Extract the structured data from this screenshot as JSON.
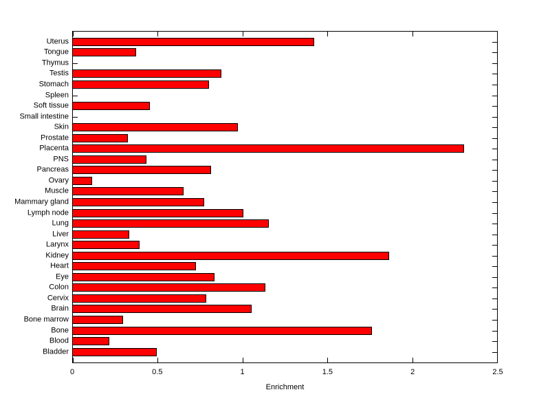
{
  "chart_data": {
    "type": "bar",
    "orientation": "horizontal",
    "title": "",
    "xlabel": "Enrichment",
    "ylabel": "",
    "xlim": [
      0,
      2.5
    ],
    "xticks": [
      0,
      0.5,
      1,
      1.5,
      2,
      2.5
    ],
    "xtick_labels": [
      "0",
      "0.5",
      "1",
      "1.5",
      "2",
      "2.5"
    ],
    "grid": false,
    "legend": "none",
    "bar_color": "#ff0000",
    "bar_edge_color": "#000000",
    "axis_color": "#000000",
    "background_color": "#ffffff",
    "categories": [
      "Uterus",
      "Tongue",
      "Thymus",
      "Testis",
      "Stomach",
      "Spleen",
      "Soft tissue",
      "Small intestine",
      "Skin",
      "Prostate",
      "Placenta",
      "PNS",
      "Pancreas",
      "Ovary",
      "Muscle",
      "Mammary gland",
      "Lymph node",
      "Lung",
      "Liver",
      "Larynx",
      "Kidney",
      "Heart",
      "Eye",
      "Colon",
      "Cervix",
      "Brain",
      "Bone marrow",
      "Bone",
      "Blood",
      "Bladder"
    ],
    "values": [
      1.42,
      0.37,
      0,
      0.87,
      0.8,
      0,
      0.45,
      0,
      0.97,
      0.32,
      2.3,
      0.43,
      0.81,
      0.11,
      0.65,
      0.77,
      1.0,
      1.15,
      0.33,
      0.39,
      1.86,
      0.72,
      0.83,
      1.13,
      0.78,
      1.05,
      0.29,
      1.76,
      0.21,
      0.49
    ]
  }
}
